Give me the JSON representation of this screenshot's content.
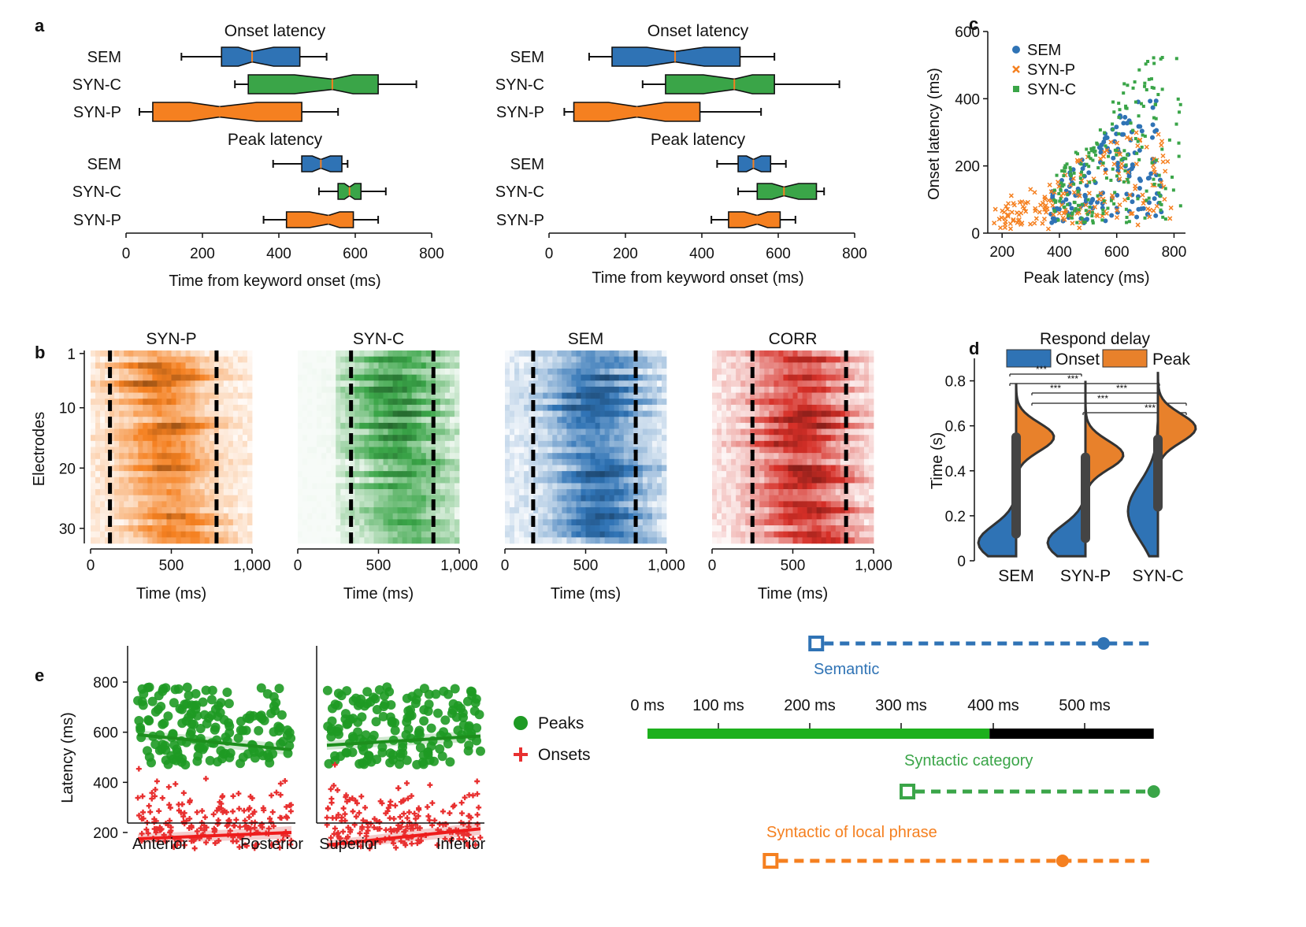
{
  "panel_labels": {
    "a": "a",
    "b": "b",
    "c": "c",
    "d": "d",
    "e": "e"
  },
  "colors": {
    "SEM": "#2f73b5",
    "SYN-C": "#3aa548",
    "SYN-P": "#f58020",
    "CORR": "#d62f27",
    "onset_violin": "#2f73b5",
    "peak_violin": "#e8812b",
    "peaks_marker": "#1e9a24",
    "onsets_marker": "#e83030",
    "timeline_green": "#1db01d",
    "timeline_black": "#000000"
  },
  "chart_data": [
    {
      "id": "a-left",
      "type": "boxplot",
      "groups": [
        {
          "title": "Onset latency",
          "rows": [
            {
              "label": "SEM",
              "color": "SEM",
              "whisker": [
                145,
                525
              ],
              "box": [
                250,
                455
              ],
              "median": 330
            },
            {
              "label": "SYN-C",
              "color": "SYN-C",
              "whisker": [
                285,
                760
              ],
              "box": [
                320,
                660
              ],
              "median": 540
            },
            {
              "label": "SYN-P",
              "color": "SYN-P",
              "whisker": [
                35,
                555
              ],
              "box": [
                70,
                460
              ],
              "median": 245
            }
          ]
        },
        {
          "title": "Peak latency",
          "rows": [
            {
              "label": "SEM",
              "color": "SEM",
              "whisker": [
                385,
                580
              ],
              "box": [
                460,
                565
              ],
              "median": 510
            },
            {
              "label": "SYN-C",
              "color": "SYN-C",
              "whisker": [
                505,
                680
              ],
              "box": [
                555,
                615
              ],
              "median": 585
            },
            {
              "label": "SYN-P",
              "color": "SYN-P",
              "whisker": [
                360,
                660
              ],
              "box": [
                420,
                595
              ],
              "median": 530
            }
          ]
        }
      ],
      "xticks": [
        "0",
        "200",
        "400",
        "600",
        "800"
      ],
      "xlim": [
        0,
        800
      ],
      "xlabel": "Time from keyword onset (ms)"
    },
    {
      "id": "a-right",
      "type": "boxplot",
      "groups": [
        {
          "title": "Onset latency",
          "rows": [
            {
              "label": "SEM",
              "color": "SEM",
              "whisker": [
                105,
                590
              ],
              "box": [
                165,
                500
              ],
              "median": 330
            },
            {
              "label": "SYN-C",
              "color": "SYN-C",
              "whisker": [
                245,
                760
              ],
              "box": [
                305,
                590
              ],
              "median": 485
            },
            {
              "label": "SYN-P",
              "color": "SYN-P",
              "whisker": [
                40,
                555
              ],
              "box": [
                65,
                395
              ],
              "median": 230
            }
          ]
        },
        {
          "title": "Peak latency",
          "rows": [
            {
              "label": "SEM",
              "color": "SEM",
              "whisker": [
                440,
                620
              ],
              "box": [
                495,
                580
              ],
              "median": 535
            },
            {
              "label": "SYN-C",
              "color": "SYN-C",
              "whisker": [
                495,
                720
              ],
              "box": [
                545,
                700
              ],
              "median": 615
            },
            {
              "label": "SYN-P",
              "color": "SYN-P",
              "whisker": [
                425,
                645
              ],
              "box": [
                470,
                605
              ],
              "median": 545
            }
          ]
        }
      ],
      "xticks": [
        "0",
        "200",
        "400",
        "600",
        "800"
      ],
      "xlim": [
        0,
        800
      ],
      "xlabel": "Time from keyword onset (ms)"
    },
    {
      "id": "c",
      "type": "scatter",
      "xlabel": "Peak latency (ms)",
      "ylabel": "Onset latency (ms)",
      "xlim": [
        150,
        840
      ],
      "ylim": [
        0,
        600
      ],
      "xticks": [
        "200",
        "400",
        "600",
        "800"
      ],
      "yticks": [
        "0",
        "200",
        "400",
        "600"
      ],
      "legend_position": "top-left",
      "series": [
        {
          "name": "SEM",
          "marker": "circle",
          "color": "SEM",
          "n": 160,
          "x_range": [
            370,
            760
          ],
          "y_range": [
            30,
            400
          ]
        },
        {
          "name": "SYN-P",
          "marker": "x",
          "color": "SYN-P",
          "n": 180,
          "x_range": [
            170,
            790
          ],
          "y_range": [
            10,
            300
          ]
        },
        {
          "name": "SYN-C",
          "marker": "square",
          "color": "SYN-C",
          "n": 200,
          "x_range": [
            380,
            830
          ],
          "y_range": [
            30,
            550
          ]
        }
      ]
    },
    {
      "id": "b",
      "type": "heatmap",
      "panels": [
        {
          "title": "SYN-P",
          "color": "SYN-P",
          "peak_ms": 450,
          "dashed_lines_ms": [
            120,
            780
          ]
        },
        {
          "title": "SYN-C",
          "color": "SYN-C",
          "peak_ms": 620,
          "dashed_lines_ms": [
            330,
            840
          ]
        },
        {
          "title": "SEM",
          "color": "SEM",
          "peak_ms": 560,
          "dashed_lines_ms": [
            175,
            810
          ]
        },
        {
          "title": "CORR",
          "color": "CORR",
          "peak_ms": 520,
          "dashed_lines_ms": [
            250,
            830
          ]
        }
      ],
      "rows": 32,
      "yticks": [
        "1",
        "10",
        "20",
        "30"
      ],
      "ylabel": "Electrodes",
      "xticks": [
        "0",
        "500",
        "1,000"
      ],
      "xlabel": "Time (ms)"
    },
    {
      "id": "d",
      "type": "violin",
      "title": "Respond delay",
      "legend": [
        "Onset",
        "Peak"
      ],
      "ylabel": "Time (s)",
      "ylim": [
        0,
        0.9
      ],
      "yticks": [
        "0",
        "0.2",
        "0.4",
        "0.6",
        "0.8"
      ],
      "categories": [
        "SEM",
        "SYN-P",
        "SYN-C"
      ],
      "significance": "***",
      "onset_mode": [
        0.08,
        0.08,
        0.22
      ],
      "peak_mode": [
        0.55,
        0.47,
        0.59
      ],
      "iqr": [
        [
          0.12,
          0.55
        ],
        [
          0.1,
          0.46
        ],
        [
          0.24,
          0.54
        ]
      ],
      "max": [
        0.79,
        0.8,
        0.84
      ]
    },
    {
      "id": "e-scatter",
      "type": "scatter",
      "ylabel": "Latency (ms)",
      "ylim": [
        0,
        800
      ],
      "yticks": [
        "200",
        "400",
        "600",
        "800"
      ],
      "subplots": [
        {
          "xlabels": [
            "Anterior",
            "Posterior"
          ],
          "peak_fit": [
            590,
            530
          ],
          "onset_fit": [
            175,
            200
          ]
        },
        {
          "xlabels": [
            "Superior",
            "Inferior"
          ],
          "peak_fit": [
            548,
            585
          ],
          "onset_fit": [
            150,
            215
          ]
        }
      ],
      "legend": {
        "peaks": "Peaks",
        "onsets": "Onsets"
      }
    },
    {
      "id": "e-timeline",
      "type": "timeline",
      "ticks": [
        "0 ms",
        "100 ms",
        "200 ms",
        "300 ms",
        "400 ms",
        "500 ms"
      ],
      "bar_green_end_ms": 375,
      "bar_end_ms": 555,
      "rows": [
        {
          "label": "Semantic",
          "color": "SEM",
          "onset_ms": 185,
          "peak_ms": 500,
          "end_ms": 555
        },
        {
          "label": "Syntactic category",
          "color": "SYN-C",
          "onset_ms": 285,
          "peak_ms": 555,
          "end_ms": 555
        },
        {
          "label": "Syntactic of local phrase",
          "color": "SYN-P",
          "onset_ms": 135,
          "peak_ms": 455,
          "end_ms": 550
        }
      ]
    }
  ]
}
